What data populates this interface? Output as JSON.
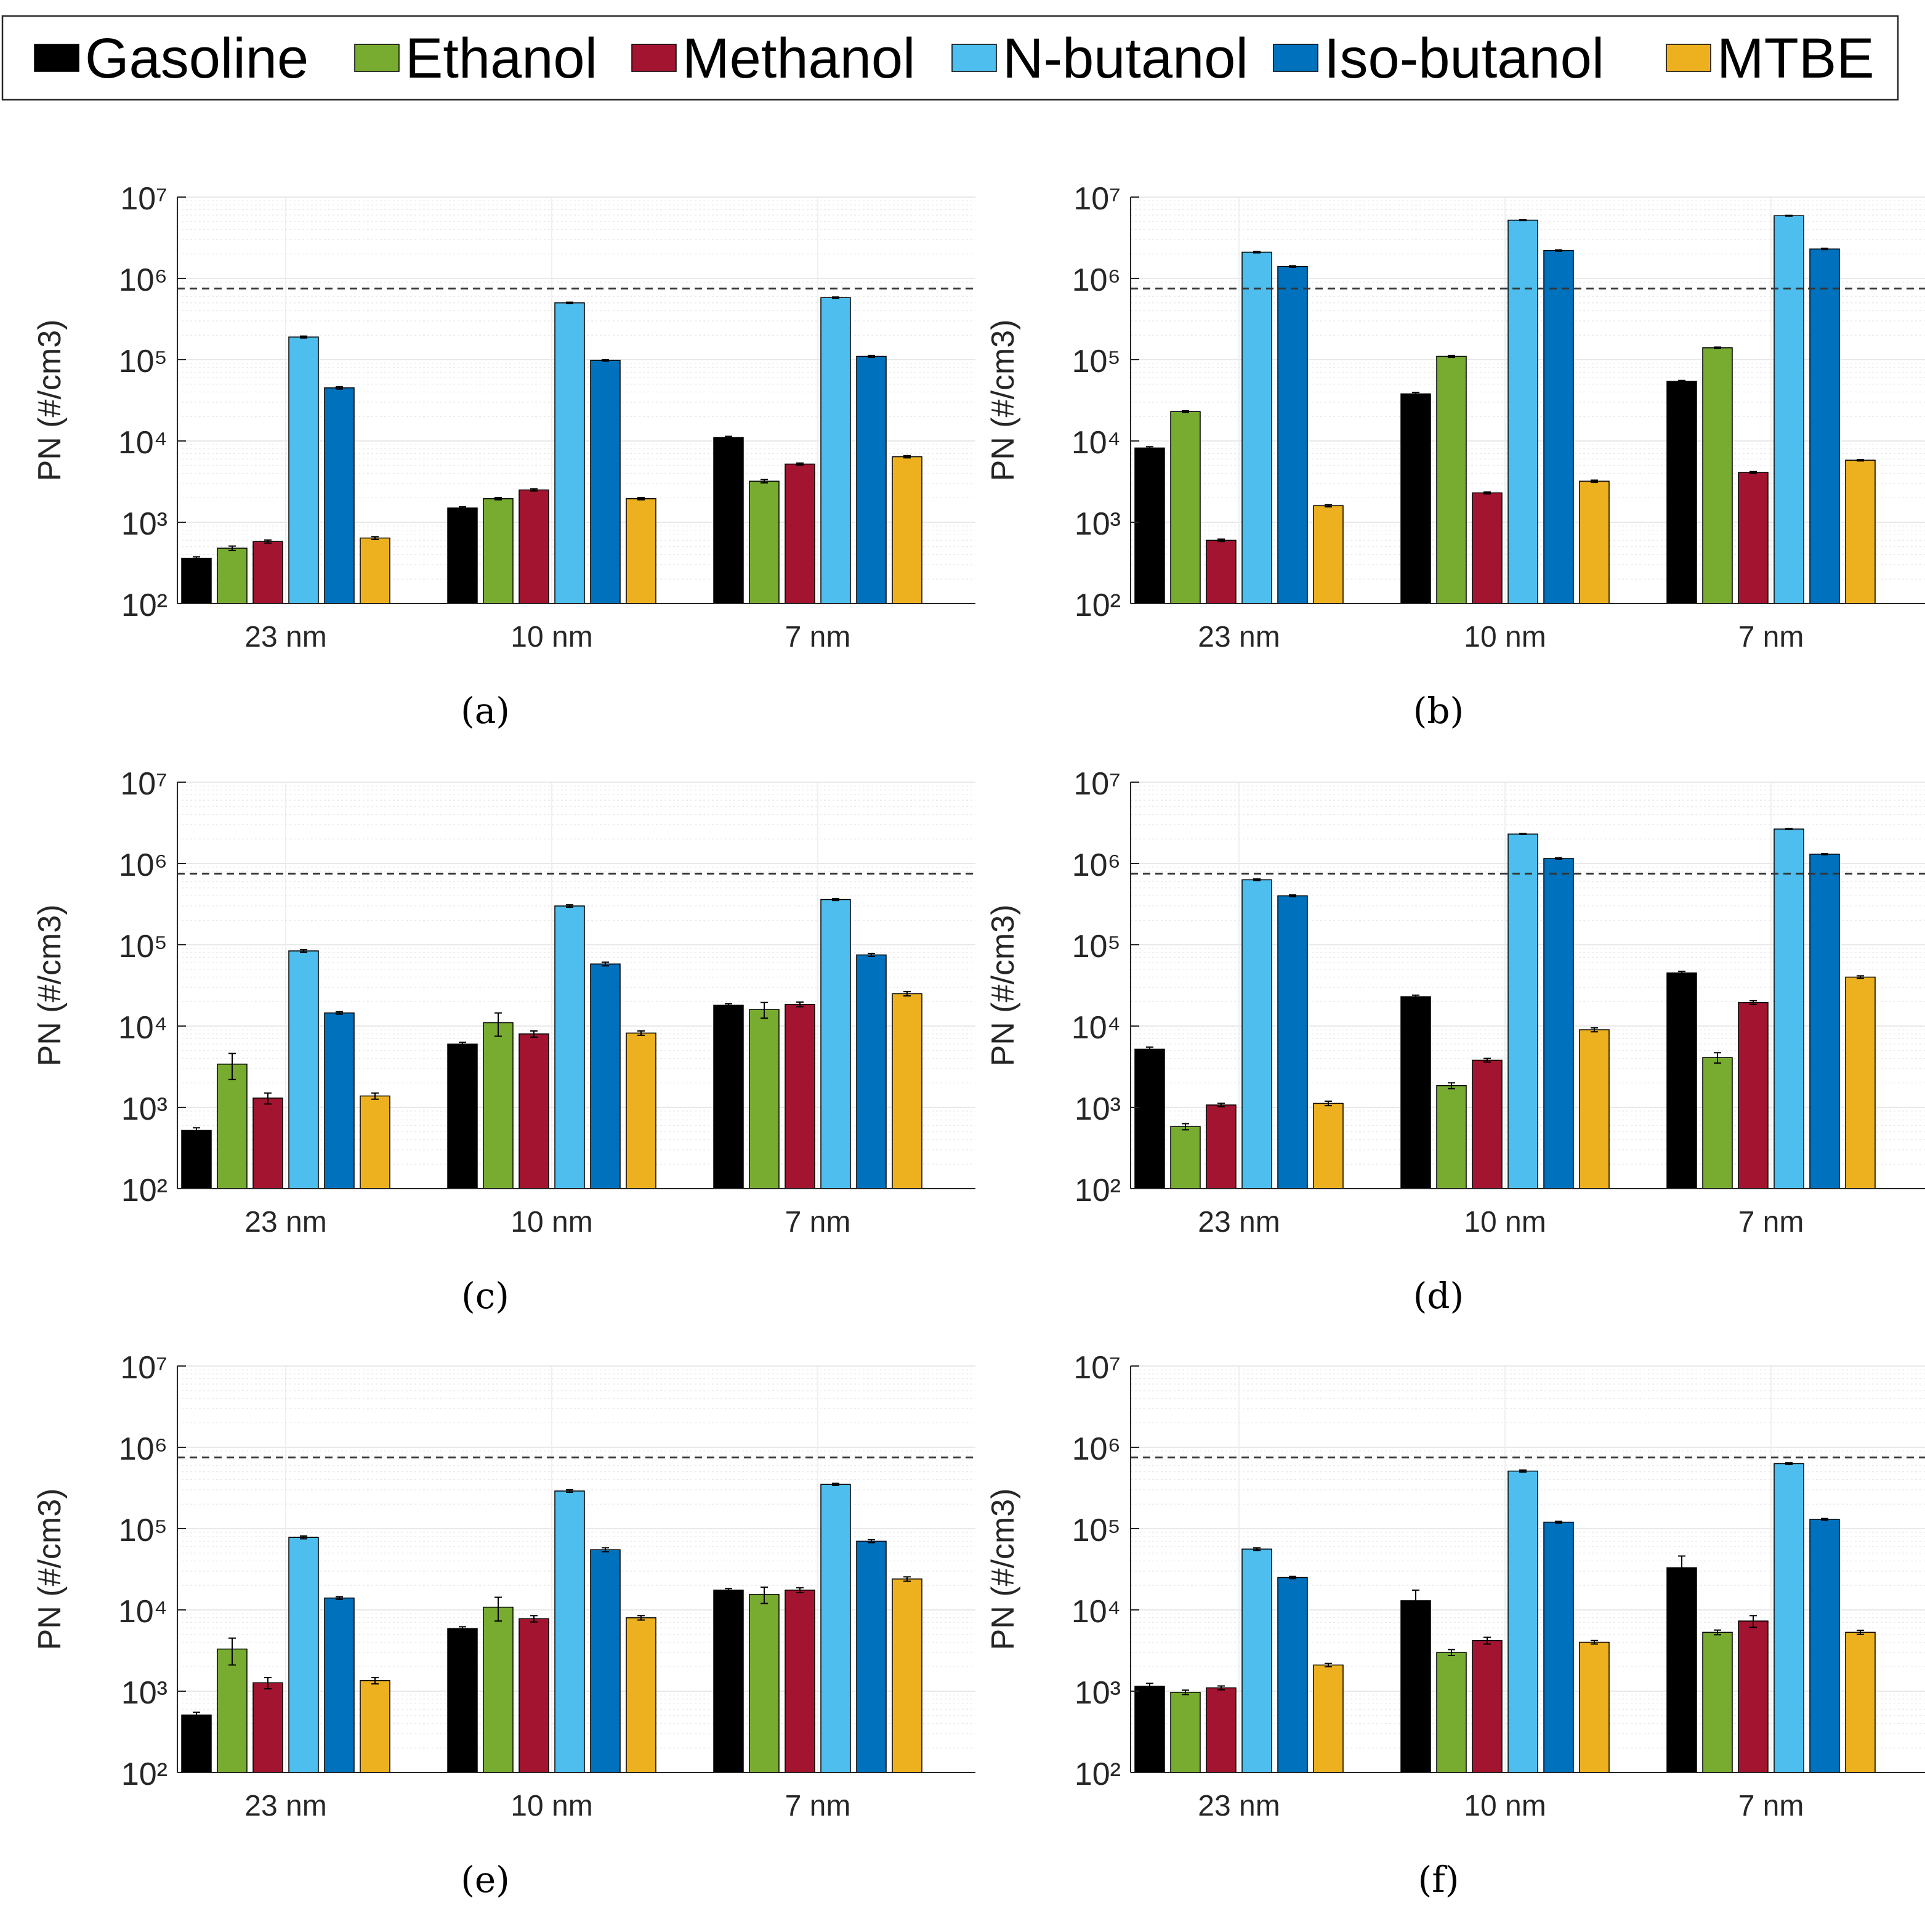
{
  "legend": {
    "items": [
      {
        "label": "Gasoline",
        "color": "#000000"
      },
      {
        "label": "Ethanol",
        "color": "#77ac30"
      },
      {
        "label": "Methanol",
        "color": "#a2142f"
      },
      {
        "label": "N-butanol",
        "color": "#4dbeee"
      },
      {
        "label": "Iso-butanol",
        "color": "#0072bd"
      },
      {
        "label": "MTBE",
        "color": "#edb120"
      }
    ]
  },
  "chart_data": [
    {
      "type": "bar",
      "panel_label": "(a)",
      "ylabel": "PN (#/cm3)",
      "yscale": "log",
      "ylim": [
        100,
        10000000
      ],
      "categories": [
        "23 nm",
        "10 nm",
        "7 nm"
      ],
      "reference_line": 750000,
      "series": [
        {
          "name": "Gasoline",
          "values": [
            360,
            1500,
            11000
          ],
          "errors": [
            15,
            50,
            400
          ]
        },
        {
          "name": "Ethanol",
          "values": [
            480,
            1950,
            3200
          ],
          "errors": [
            30,
            60,
            150
          ]
        },
        {
          "name": "Methanol",
          "values": [
            580,
            2500,
            5200
          ],
          "errors": [
            25,
            80,
            150
          ]
        },
        {
          "name": "N-butanol",
          "values": [
            190000,
            500000,
            580000
          ],
          "errors": [
            5000,
            10000,
            10000
          ]
        },
        {
          "name": "Iso-butanol",
          "values": [
            45000,
            98000,
            110000
          ],
          "errors": [
            1500,
            2000,
            3000
          ]
        },
        {
          "name": "MTBE",
          "values": [
            640,
            1950,
            6400
          ],
          "errors": [
            25,
            60,
            200
          ]
        }
      ]
    },
    {
      "type": "bar",
      "panel_label": "(b)",
      "ylabel": "PN (#/cm3)",
      "yscale": "log",
      "ylim": [
        100,
        10000000
      ],
      "categories": [
        "23 nm",
        "10 nm",
        "7 nm"
      ],
      "reference_line": 750000,
      "series": [
        {
          "name": "Gasoline",
          "values": [
            8200,
            38000,
            54000
          ],
          "errors": [
            300,
            1500,
            1500
          ]
        },
        {
          "name": "Ethanol",
          "values": [
            23000,
            110000,
            140000
          ],
          "errors": [
            500,
            3000,
            3000
          ]
        },
        {
          "name": "Methanol",
          "values": [
            600,
            2300,
            4100
          ],
          "errors": [
            20,
            60,
            100
          ]
        },
        {
          "name": "N-butanol",
          "values": [
            2100000,
            5200000,
            5900000
          ],
          "errors": [
            40000,
            60000,
            60000
          ]
        },
        {
          "name": "Iso-butanol",
          "values": [
            1400000,
            2200000,
            2300000
          ],
          "errors": [
            30000,
            40000,
            40000
          ]
        },
        {
          "name": "MTBE",
          "values": [
            1600,
            3200,
            5800
          ],
          "errors": [
            50,
            100,
            120
          ]
        }
      ]
    },
    {
      "type": "bar",
      "panel_label": "(c)",
      "ylabel": "PN (#/cm3)",
      "yscale": "log",
      "ylim": [
        100,
        10000000
      ],
      "categories": [
        "23 nm",
        "10 nm",
        "7 nm"
      ],
      "reference_line": 750000,
      "series": [
        {
          "name": "Gasoline",
          "values": [
            520,
            6000,
            18000
          ],
          "errors": [
            40,
            300,
            800
          ]
        },
        {
          "name": "Ethanol",
          "values": [
            3400,
            11000,
            16000
          ],
          "errors": [
            1200,
            3500,
            3500
          ]
        },
        {
          "name": "Methanol",
          "values": [
            1300,
            8000,
            18500
          ],
          "errors": [
            200,
            700,
            1200
          ]
        },
        {
          "name": "N-butanol",
          "values": [
            84000,
            300000,
            360000
          ],
          "errors": [
            3000,
            10000,
            10000
          ]
        },
        {
          "name": "Iso-butanol",
          "values": [
            14500,
            58000,
            75000
          ],
          "errors": [
            500,
            3000,
            3000
          ]
        },
        {
          "name": "MTBE",
          "values": [
            1380,
            8200,
            25000
          ],
          "errors": [
            120,
            500,
            1500
          ]
        }
      ]
    },
    {
      "type": "bar",
      "panel_label": "(d)",
      "ylabel": "PN (#/cm3)",
      "yscale": "log",
      "ylim": [
        100,
        10000000
      ],
      "categories": [
        "23 nm",
        "10 nm",
        "7 nm"
      ],
      "reference_line": 750000,
      "series": [
        {
          "name": "Gasoline",
          "values": [
            5200,
            23000,
            45000
          ],
          "errors": [
            300,
            1000,
            2000
          ]
        },
        {
          "name": "Ethanol",
          "values": [
            580,
            1850,
            4100
          ],
          "errors": [
            50,
            150,
            600
          ]
        },
        {
          "name": "Methanol",
          "values": [
            1070,
            3800,
            19500
          ],
          "errors": [
            50,
            200,
            1000
          ]
        },
        {
          "name": "N-butanol",
          "values": [
            630000,
            2300000,
            2650000
          ],
          "errors": [
            15000,
            30000,
            40000
          ]
        },
        {
          "name": "Iso-butanol",
          "values": [
            400000,
            1150000,
            1300000
          ],
          "errors": [
            10000,
            20000,
            20000
          ]
        },
        {
          "name": "MTBE",
          "values": [
            1120,
            9000,
            40000
          ],
          "errors": [
            70,
            500,
            1500
          ]
        }
      ]
    },
    {
      "type": "bar",
      "panel_label": "(e)",
      "ylabel": "PN (#/cm3)",
      "yscale": "log",
      "ylim": [
        100,
        10000000
      ],
      "categories": [
        "23 nm",
        "10 nm",
        "7 nm"
      ],
      "reference_line": 750000,
      "series": [
        {
          "name": "Gasoline",
          "values": [
            510,
            5900,
            17500
          ],
          "errors": [
            40,
            300,
            800
          ]
        },
        {
          "name": "Ethanol",
          "values": [
            3300,
            10800,
            15500
          ],
          "errors": [
            1200,
            3500,
            3500
          ]
        },
        {
          "name": "Methanol",
          "values": [
            1270,
            7800,
            17500
          ],
          "errors": [
            200,
            700,
            1200
          ]
        },
        {
          "name": "N-butanol",
          "values": [
            78000,
            290000,
            350000
          ],
          "errors": [
            3000,
            10000,
            10000
          ]
        },
        {
          "name": "Iso-butanol",
          "values": [
            14000,
            55000,
            70000
          ],
          "errors": [
            500,
            3000,
            3000
          ]
        },
        {
          "name": "MTBE",
          "values": [
            1350,
            8000,
            24000
          ],
          "errors": [
            120,
            500,
            1500
          ]
        }
      ]
    },
    {
      "type": "bar",
      "panel_label": "(f)",
      "ylabel": "PN (#/cm3)",
      "yscale": "log",
      "ylim": [
        100,
        10000000
      ],
      "categories": [
        "23 nm",
        "10 nm",
        "7 nm"
      ],
      "reference_line": 750000,
      "series": [
        {
          "name": "Gasoline",
          "values": [
            1150,
            13000,
            33000
          ],
          "errors": [
            100,
            4500,
            13000
          ]
        },
        {
          "name": "Ethanol",
          "values": [
            970,
            3000,
            5300
          ],
          "errors": [
            60,
            250,
            350
          ]
        },
        {
          "name": "Methanol",
          "values": [
            1100,
            4200,
            7300
          ],
          "errors": [
            60,
            400,
            1200
          ]
        },
        {
          "name": "N-butanol",
          "values": [
            56000,
            510000,
            630000
          ],
          "errors": [
            2000,
            15000,
            15000
          ]
        },
        {
          "name": "Iso-butanol",
          "values": [
            25000,
            120000,
            130000
          ],
          "errors": [
            800,
            3000,
            3000
          ]
        },
        {
          "name": "MTBE",
          "values": [
            2100,
            4000,
            5300
          ],
          "errors": [
            100,
            200,
            300
          ]
        }
      ]
    }
  ]
}
